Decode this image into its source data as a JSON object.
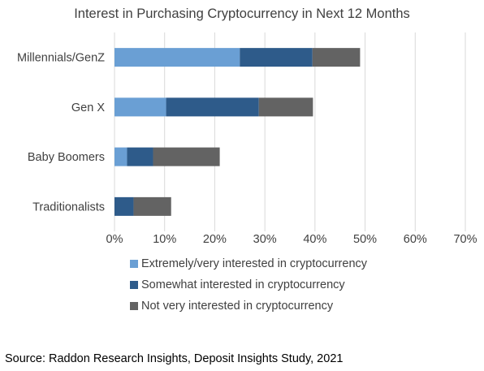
{
  "chart_data": {
    "type": "bar",
    "orientation": "horizontal",
    "stacked": true,
    "title": "Interest in Purchasing Cryptocurrency in Next 12 Months",
    "categories": [
      "Millennials/GenZ",
      "Gen X",
      "Baby Boomers",
      "Traditionalists"
    ],
    "series": [
      {
        "name": "Extremely/very interested in cryptocurrency",
        "color": "#6a9fd4",
        "values": [
          25,
          10.3,
          2.5,
          0
        ]
      },
      {
        "name": "Somewhat interested in cryptocurrency",
        "color": "#2e5b8a",
        "values": [
          14.5,
          18.5,
          5.2,
          3.8
        ]
      },
      {
        "name": "Not very interested in cryptocurrency",
        "color": "#636363",
        "values": [
          9.5,
          10.8,
          13.3,
          7.5
        ]
      }
    ],
    "xlim": [
      0,
      70
    ],
    "xticks": [
      "0%",
      "10%",
      "20%",
      "30%",
      "40%",
      "50%",
      "60%",
      "70%"
    ],
    "grid": true,
    "legend_position": "bottom"
  },
  "source": "Source: Raddon Research Insights, Deposit Insights Study, 2021"
}
